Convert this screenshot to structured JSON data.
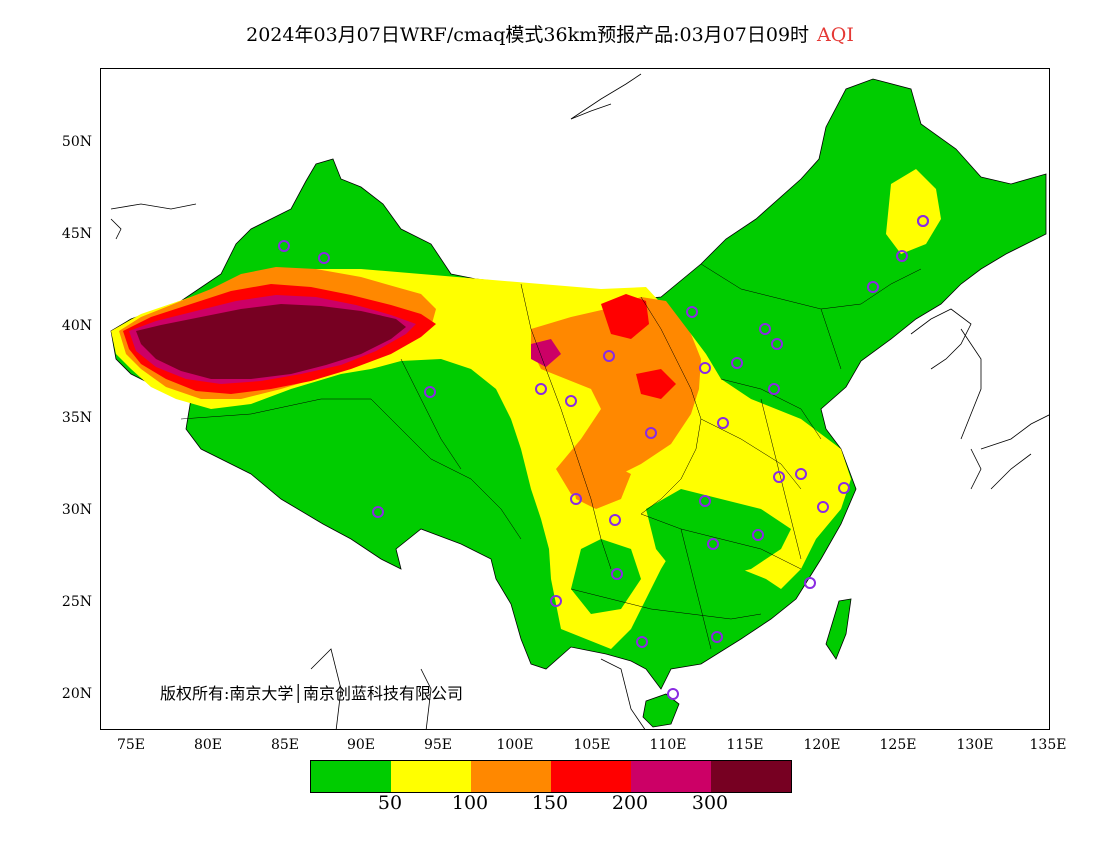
{
  "title": {
    "main": "2024年03月07日WRF/cmaq模式36km预报产品:03月07日09时",
    "variable": "AQI"
  },
  "copyright": "版权所有:南京大学│南京创蓝科技有限公司",
  "lat_labels": [
    "50N",
    "45N",
    "40N",
    "35N",
    "30N",
    "25N",
    "20N"
  ],
  "lon_labels": [
    "75E",
    "80E",
    "85E",
    "90E",
    "95E",
    "100E",
    "105E",
    "110E",
    "115E",
    "120E",
    "125E",
    "130E",
    "135E"
  ],
  "legend": {
    "colors": [
      "#00cc00",
      "#ffff00",
      "#ff8800",
      "#ff0000",
      "#cc0066",
      "#770022"
    ],
    "thresholds": [
      "50",
      "100",
      "150",
      "200",
      "300"
    ]
  },
  "colors": {
    "land": "#00cc00",
    "background": "#ffffff",
    "station": "#8a2be2"
  }
}
